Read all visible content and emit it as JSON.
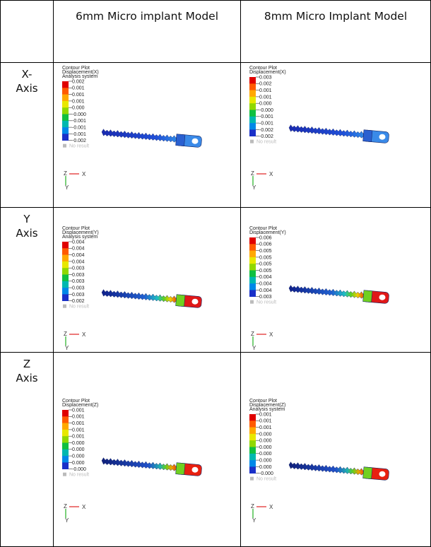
{
  "table": {
    "header": [
      "6mm Micro implant Model",
      "8mm Micro Implant Model"
    ],
    "rows": [
      {
        "label": [
          "X-",
          "Axis"
        ],
        "cells": [
          {
            "title": [
              "Contour Plot",
              "Displacement(X)",
              "Analysis system"
            ],
            "legend": [
              "0.002",
              "0.001",
              "0.001",
              "0.001",
              "0.000",
              "-0.000",
              "-0.001",
              "-0.001",
              "-0.001",
              "-0.002"
            ],
            "no_result": "No result",
            "axes": [
              "Z",
              "X",
              "Y"
            ]
          },
          {
            "title": [
              "Contour Plot",
              "Displacement(X)"
            ],
            "legend": [
              "0.003",
              "0.002",
              "0.001",
              "0.001",
              "0.000",
              "-0.000",
              "-0.001",
              "-0.001",
              "-0.002",
              "-0.002"
            ],
            "no_result": "No result",
            "axes": [
              "Z",
              "X",
              "Y"
            ]
          }
        ]
      },
      {
        "label": [
          "Y",
          "Axis"
        ],
        "cells": [
          {
            "title": [
              "Contour Plot",
              "Displacement(Y)",
              "Analysis system"
            ],
            "legend": [
              "0.004",
              "0.004",
              "0.004",
              "0.004",
              "0.003",
              "0.003",
              "0.003",
              "0.003",
              "0.003",
              "0.002"
            ],
            "no_result": "No result",
            "axes": [
              "Z",
              "X",
              "Y"
            ]
          },
          {
            "title": [
              "Contour Plot",
              "Displacement(Y)"
            ],
            "legend": [
              "0.006",
              "0.006",
              "0.005",
              "0.005",
              "0.005",
              "0.005",
              "0.004",
              "0.004",
              "0.004",
              "0.003"
            ],
            "no_result": "No result",
            "axes": [
              "Z",
              "X",
              "Y"
            ]
          }
        ]
      },
      {
        "label": [
          "Z",
          "Axis"
        ],
        "cells": [
          {
            "title": [
              "Contour Plot",
              "Displacement(Z)"
            ],
            "legend": [
              "0.001",
              "0.001",
              "0.001",
              "0.001",
              "0.001",
              "0.000",
              "0.000",
              "0.000",
              "0.000",
              "-0.000"
            ],
            "no_result": "No result",
            "axes": [
              "Z",
              "X",
              "Y"
            ]
          },
          {
            "title": [
              "Contour Plot",
              "Displacement(Z)",
              "Analysis system"
            ],
            "legend": [
              "0.001",
              "0.001",
              "0.001",
              "0.000",
              "0.000",
              "0.000",
              "0.000",
              "0.000",
              "0.000",
              "-0.000"
            ],
            "no_result": "No result",
            "axes": [
              "Z",
              "X",
              "Y"
            ]
          }
        ]
      }
    ]
  }
}
